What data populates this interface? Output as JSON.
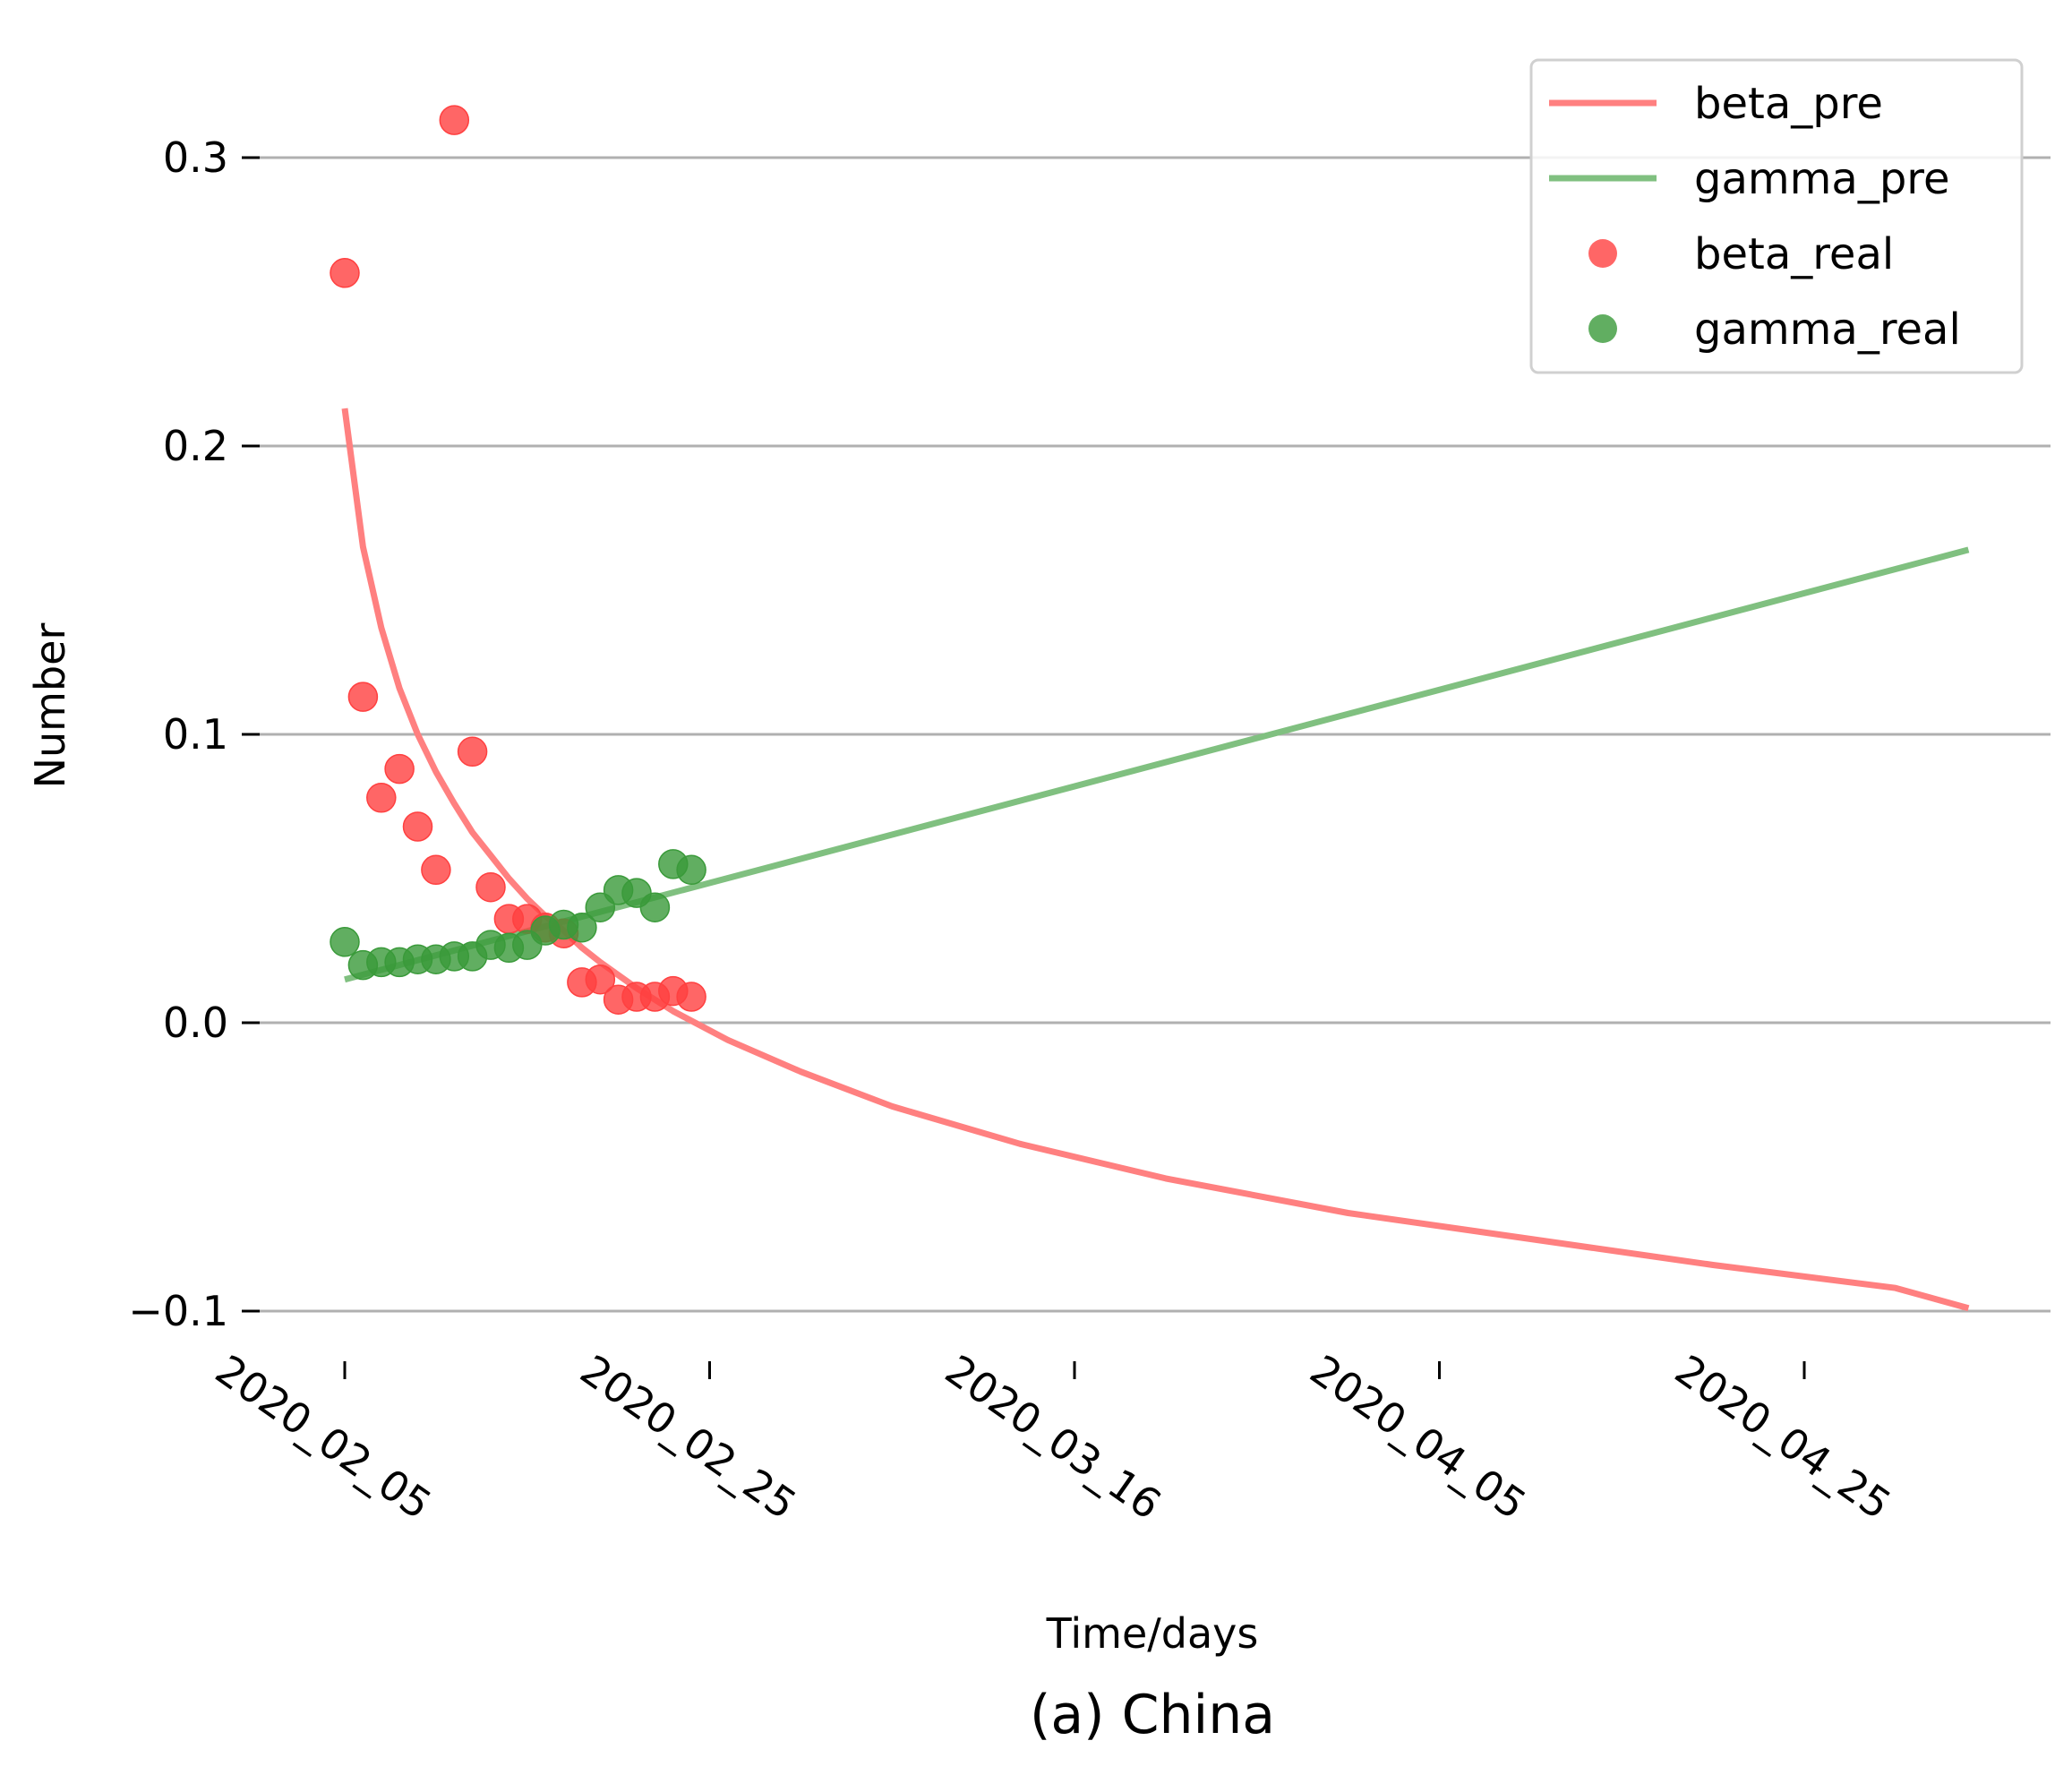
{
  "chart_data": {
    "type": "line",
    "title": "",
    "caption": "(a) China",
    "xlabel": "Time/days",
    "ylabel": "Number",
    "x_ticks": [
      "2020_02_05",
      "2020_02_25",
      "2020_03_16",
      "2020_04_05",
      "2020_04_25"
    ],
    "y_ticks": [
      "−0.1",
      "0.0",
      "0.1",
      "0.2",
      "0.3"
    ],
    "x_start": "2020_02_05",
    "x_end": "2020_05_04",
    "ylim": [
      -0.105,
      0.32
    ],
    "grid": "horizontal",
    "legend_position": "top-right",
    "series": [
      {
        "name": "beta_pre",
        "kind": "line",
        "color": "#ff8080",
        "points": [
          [
            "2020_02_05",
            0.213
          ],
          [
            "2020_02_06",
            0.165
          ],
          [
            "2020_02_07",
            0.137
          ],
          [
            "2020_02_08",
            0.116
          ],
          [
            "2020_02_09",
            0.1
          ],
          [
            "2020_02_10",
            0.087
          ],
          [
            "2020_02_11",
            0.076
          ],
          [
            "2020_02_12",
            0.066
          ],
          [
            "2020_02_13",
            0.058
          ],
          [
            "2020_02_14",
            0.05
          ],
          [
            "2020_02_15",
            0.043
          ],
          [
            "2020_02_16",
            0.037
          ],
          [
            "2020_02_17",
            0.032
          ],
          [
            "2020_02_18",
            0.026
          ],
          [
            "2020_02_19",
            0.021
          ],
          [
            "2020_02_21",
            0.012
          ],
          [
            "2020_02_23",
            0.004
          ],
          [
            "2020_02_26",
            -0.006
          ],
          [
            "2020_03_01",
            -0.017
          ],
          [
            "2020_03_06",
            -0.029
          ],
          [
            "2020_03_13",
            -0.042
          ],
          [
            "2020_03_21",
            -0.054
          ],
          [
            "2020_03_31",
            -0.066
          ],
          [
            "2020_04_10",
            -0.075
          ],
          [
            "2020_04_20",
            -0.084
          ],
          [
            "2020_04_30",
            -0.092
          ],
          [
            "2020_05_04",
            -0.099
          ]
        ]
      },
      {
        "name": "gamma_pre",
        "kind": "line",
        "color": "#80c080",
        "points": [
          [
            "2020_02_05",
            0.015
          ],
          [
            "2020_05_04",
            0.164
          ]
        ]
      },
      {
        "name": "beta_real",
        "kind": "scatter",
        "color": "#ff4040",
        "points": [
          [
            "2020_02_05",
            0.26
          ],
          [
            "2020_02_06",
            0.113
          ],
          [
            "2020_02_07",
            0.078
          ],
          [
            "2020_02_08",
            0.088
          ],
          [
            "2020_02_09",
            0.068
          ],
          [
            "2020_02_10",
            0.053
          ],
          [
            "2020_02_11",
            0.313
          ],
          [
            "2020_02_12",
            0.094
          ],
          [
            "2020_02_13",
            0.047
          ],
          [
            "2020_02_14",
            0.036
          ],
          [
            "2020_02_15",
            0.036
          ],
          [
            "2020_02_16",
            0.033
          ],
          [
            "2020_02_17",
            0.031
          ],
          [
            "2020_02_18",
            0.014
          ],
          [
            "2020_02_19",
            0.015
          ],
          [
            "2020_02_20",
            0.008
          ],
          [
            "2020_02_21",
            0.009
          ],
          [
            "2020_02_22",
            0.009
          ],
          [
            "2020_02_23",
            0.011
          ],
          [
            "2020_02_24",
            0.009
          ]
        ]
      },
      {
        "name": "gamma_real",
        "kind": "scatter",
        "color": "#3a9a3a",
        "points": [
          [
            "2020_02_05",
            0.028
          ],
          [
            "2020_02_06",
            0.02
          ],
          [
            "2020_02_07",
            0.021
          ],
          [
            "2020_02_08",
            0.021
          ],
          [
            "2020_02_09",
            0.022
          ],
          [
            "2020_02_10",
            0.022
          ],
          [
            "2020_02_11",
            0.023
          ],
          [
            "2020_02_12",
            0.023
          ],
          [
            "2020_02_13",
            0.027
          ],
          [
            "2020_02_14",
            0.026
          ],
          [
            "2020_02_15",
            0.027
          ],
          [
            "2020_02_16",
            0.032
          ],
          [
            "2020_02_17",
            0.034
          ],
          [
            "2020_02_18",
            0.033
          ],
          [
            "2020_02_19",
            0.04
          ],
          [
            "2020_02_20",
            0.046
          ],
          [
            "2020_02_21",
            0.045
          ],
          [
            "2020_02_22",
            0.04
          ],
          [
            "2020_02_23",
            0.055
          ],
          [
            "2020_02_24",
            0.053
          ]
        ]
      }
    ]
  }
}
